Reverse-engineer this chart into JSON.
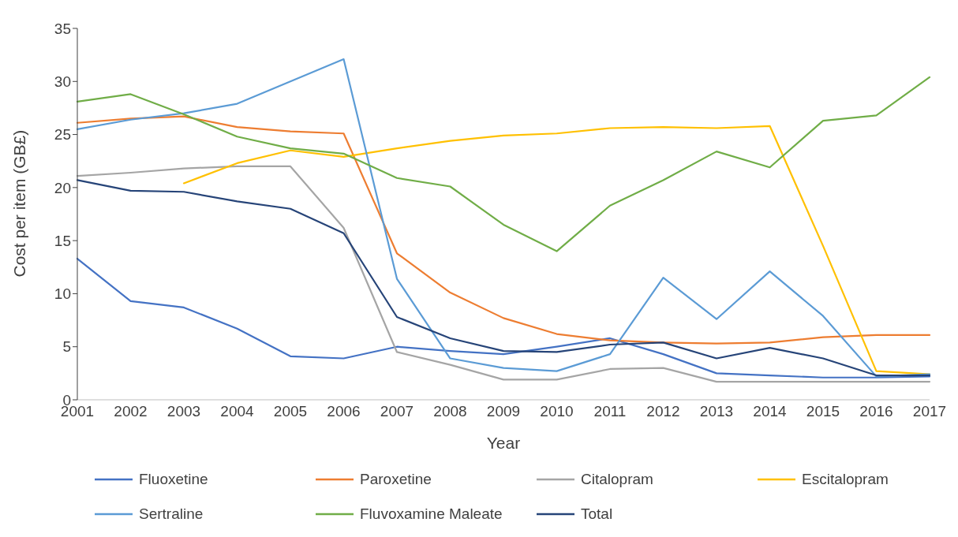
{
  "chart_data": {
    "type": "line",
    "xlabel": "Year",
    "ylabel": "Cost per item (GB£)",
    "categories": [
      "2001",
      "2002",
      "2003",
      "2004",
      "2005",
      "2006",
      "2007",
      "2008",
      "2009",
      "2010",
      "2011",
      "2012",
      "2013",
      "2014",
      "2015",
      "2016",
      "2017"
    ],
    "ylim": [
      0,
      35
    ],
    "yticks": [
      0,
      5,
      10,
      15,
      20,
      25,
      30,
      35
    ],
    "grid": false,
    "legend": "bottom",
    "marker": "none",
    "line_style": "solid",
    "series": [
      {
        "name": "Fluoxetine",
        "color": "#4472c4",
        "values": [
          13.3,
          9.3,
          8.7,
          6.7,
          4.1,
          3.9,
          5.0,
          4.6,
          4.3,
          5.0,
          5.8,
          4.3,
          2.5,
          2.3,
          2.1,
          2.1,
          2.2
        ]
      },
      {
        "name": "Paroxetine",
        "color": "#ed7d31",
        "values": [
          26.1,
          26.5,
          26.7,
          25.7,
          25.3,
          25.1,
          13.8,
          10.1,
          7.7,
          6.2,
          5.6,
          5.4,
          5.3,
          5.4,
          5.9,
          6.1,
          6.1
        ]
      },
      {
        "name": "Citalopram",
        "color": "#a5a5a5",
        "values": [
          21.1,
          21.4,
          21.8,
          22.0,
          22.0,
          16.2,
          4.5,
          3.3,
          1.9,
          1.9,
          2.9,
          3.0,
          1.7,
          1.7,
          1.7,
          1.7,
          1.7
        ]
      },
      {
        "name": "Escitalopram",
        "color": "#ffc000",
        "values": [
          null,
          null,
          20.4,
          22.3,
          23.5,
          22.9,
          23.7,
          24.4,
          24.9,
          25.1,
          25.6,
          25.7,
          25.6,
          25.8,
          14.5,
          2.7,
          2.4
        ]
      },
      {
        "name": "Sertraline",
        "color": "#5b9bd5",
        "values": [
          25.5,
          26.4,
          27.0,
          27.9,
          30.0,
          32.1,
          11.4,
          3.9,
          3.0,
          2.7,
          4.3,
          11.5,
          7.6,
          12.1,
          7.9,
          2.2,
          2.4
        ]
      },
      {
        "name": "Fluvoxamine Maleate",
        "color": "#70ad47",
        "values": [
          28.1,
          28.8,
          26.9,
          24.8,
          23.7,
          23.2,
          20.9,
          20.1,
          16.5,
          14.0,
          18.3,
          20.7,
          23.4,
          21.9,
          26.3,
          26.8,
          30.4
        ]
      },
      {
        "name": "Total",
        "color": "#264478",
        "values": [
          20.7,
          19.7,
          19.6,
          18.7,
          18.0,
          15.7,
          7.8,
          5.8,
          4.6,
          4.5,
          5.2,
          5.4,
          3.9,
          4.9,
          3.9,
          2.3,
          2.3
        ]
      }
    ]
  }
}
